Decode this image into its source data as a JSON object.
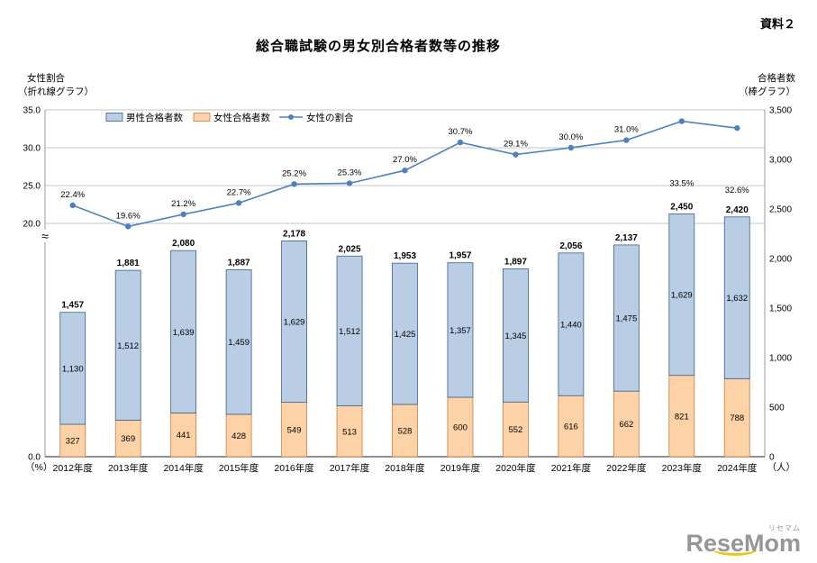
{
  "page": {
    "doc_label": "資料２",
    "title": "総合職試験の男女別合格者数等の推移"
  },
  "axis_titles": {
    "left1": "女性割合",
    "left2": "（折れ線グラフ）",
    "right1": "合格者数",
    "right2": "（棒グラフ）",
    "left_unit": "（%）",
    "right_unit": "（人）"
  },
  "logo": {
    "text": "ReseMom",
    "kana": "リセマム"
  },
  "colors": {
    "male_fill": "#b9cde5",
    "male_border": "#39608e",
    "female_fill": "#fcd2a6",
    "female_border": "#cf7c3e",
    "line": "#4f81bd",
    "grid": "#c6c6c6",
    "axis": "#9b9b9b",
    "axis_bottom": "#4d4d4d",
    "text": "#000000"
  },
  "chart_data": {
    "type": "combo",
    "title": "総合職試験の男女別合格者数等の推移",
    "categories": [
      "2012年度",
      "2013年度",
      "2014年度",
      "2015年度",
      "2016年度",
      "2017年度",
      "2018年度",
      "2019年度",
      "2020年度",
      "2021年度",
      "2022年度",
      "2023年度",
      "2024年度"
    ],
    "series": [
      {
        "name": "男性合格者数",
        "type": "bar",
        "stack": "total",
        "axis": "right",
        "values": [
          1130,
          1512,
          1639,
          1459,
          1629,
          1512,
          1425,
          1357,
          1345,
          1440,
          1475,
          1629,
          1632
        ]
      },
      {
        "name": "女性合格者数",
        "type": "bar",
        "stack": "total",
        "axis": "right",
        "values": [
          327,
          369,
          441,
          428,
          549,
          513,
          528,
          600,
          552,
          616,
          662,
          821,
          788
        ]
      },
      {
        "name": "女性の割合",
        "type": "line",
        "axis": "left",
        "unit": "%",
        "values": [
          22.4,
          19.6,
          21.2,
          22.7,
          25.2,
          25.3,
          27.0,
          30.7,
          29.1,
          30.0,
          31.0,
          33.5,
          32.6
        ]
      }
    ],
    "totals": [
      1457,
      1881,
      2080,
      1887,
      2178,
      2025,
      1953,
      1957,
      1897,
      2056,
      2137,
      2450,
      2420
    ],
    "left_axis": {
      "title": "女性割合（折れ線グラフ）",
      "unit": "%",
      "ticks": [
        35,
        30,
        25,
        20,
        0
      ],
      "visible_range": [
        20,
        35
      ],
      "axis_break_between": [
        0,
        20
      ]
    },
    "right_axis": {
      "title": "合格者数（棒グラフ）",
      "unit": "人",
      "ticks": [
        3500,
        3000,
        2500,
        2000,
        1500,
        1000,
        500,
        0
      ],
      "max": 3500
    },
    "legend_position": "top-left-inside",
    "grid": "horizontal-left-ticks",
    "percent_label_below": [
      false,
      false,
      false,
      false,
      false,
      false,
      false,
      false,
      false,
      false,
      false,
      true,
      true
    ]
  }
}
